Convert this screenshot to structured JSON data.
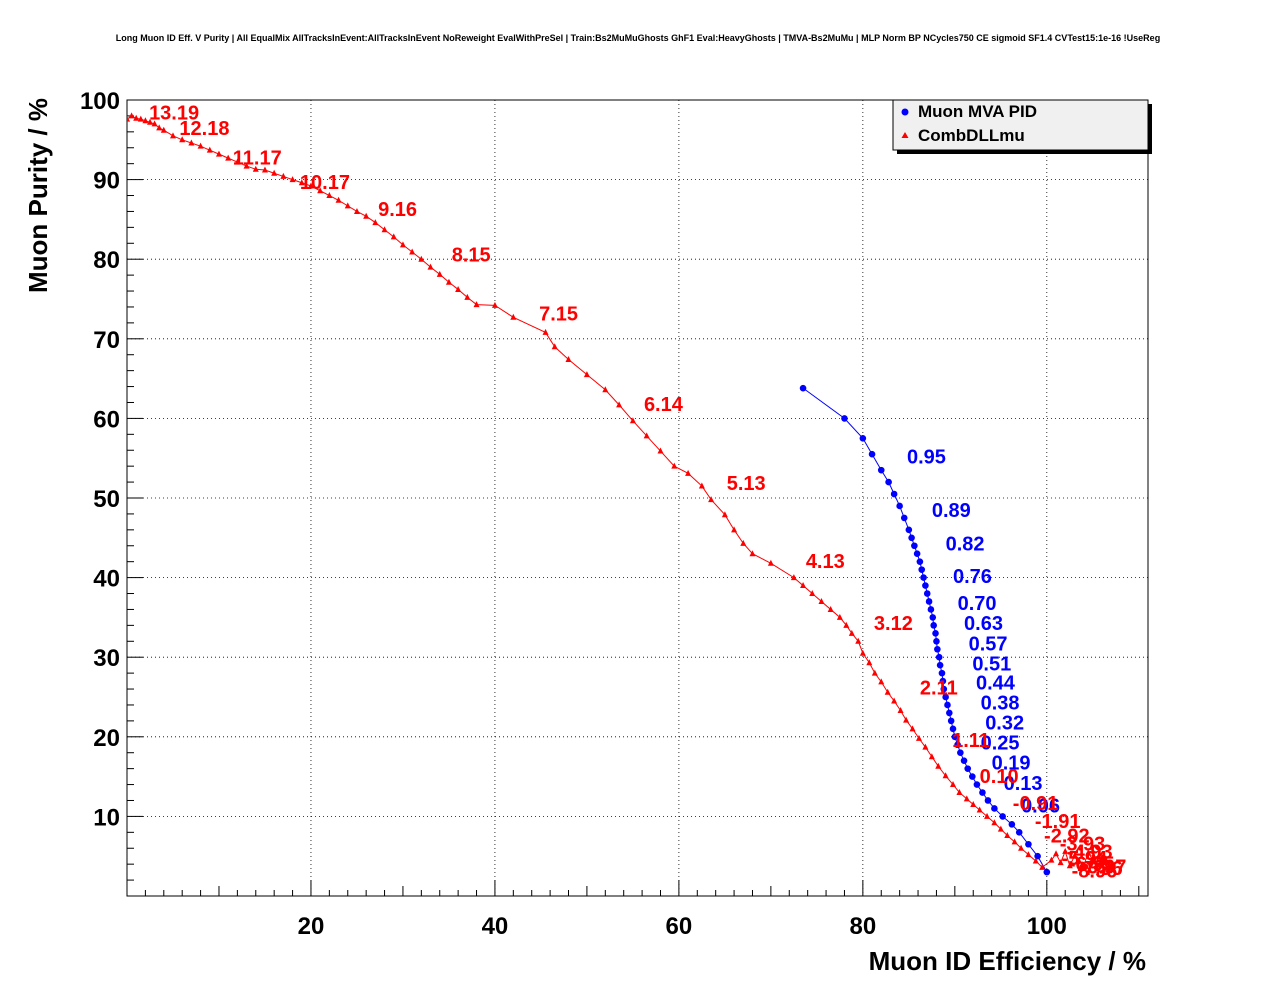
{
  "chart_data": {
    "type": "scatter",
    "title": "Long Muon ID Eff. V Purity | All EqualMix AllTracksInEvent:AllTracksInEvent NoReweight EvalWithPreSel | Train:Bs2MuMuGhosts GhF1 Eval:HeavyGhosts | TMVA-Bs2MuMu | MLP Norm BP NCycles750 CE sigmoid SF1.4 CVTest15:1e-16 !UseReg",
    "xlabel": "Muon ID Efficiency / %",
    "ylabel": "Muon Purity / %",
    "xlim": [
      0,
      111
    ],
    "ylim": [
      0,
      100
    ],
    "x_ticks": [
      20,
      40,
      60,
      80,
      100
    ],
    "y_ticks": [
      10,
      20,
      30,
      40,
      50,
      60,
      70,
      80,
      90,
      100
    ],
    "grid": true,
    "legend_position": "top-right",
    "series": [
      {
        "name": "Muon MVA PID",
        "color": "#0000ff",
        "marker": "circle",
        "points": [
          [
            73.5,
            63.8
          ],
          [
            78,
            60
          ],
          [
            80,
            57.5
          ],
          [
            81,
            55.5
          ],
          [
            82,
            53.5
          ],
          [
            82.8,
            52
          ],
          [
            83.4,
            50.5
          ],
          [
            84,
            49
          ],
          [
            84.5,
            47.5
          ],
          [
            85,
            46
          ],
          [
            85.3,
            45
          ],
          [
            85.6,
            44
          ],
          [
            85.9,
            43
          ],
          [
            86.2,
            42
          ],
          [
            86.4,
            41
          ],
          [
            86.6,
            40
          ],
          [
            86.8,
            39
          ],
          [
            87,
            38
          ],
          [
            87.2,
            37
          ],
          [
            87.4,
            36
          ],
          [
            87.6,
            35
          ],
          [
            87.7,
            34
          ],
          [
            87.9,
            33
          ],
          [
            88,
            32
          ],
          [
            88.1,
            31
          ],
          [
            88.3,
            30
          ],
          [
            88.4,
            29
          ],
          [
            88.6,
            28
          ],
          [
            88.7,
            27
          ],
          [
            88.8,
            26
          ],
          [
            89,
            25
          ],
          [
            89.2,
            24
          ],
          [
            89.4,
            23
          ],
          [
            89.6,
            22
          ],
          [
            89.8,
            21
          ],
          [
            90,
            20
          ],
          [
            90.3,
            19
          ],
          [
            90.6,
            18
          ],
          [
            91,
            17
          ],
          [
            91.4,
            16
          ],
          [
            91.9,
            15
          ],
          [
            92.4,
            14
          ],
          [
            93,
            13
          ],
          [
            93.6,
            12
          ],
          [
            94.3,
            11
          ],
          [
            95.2,
            10
          ],
          [
            96.2,
            9
          ],
          [
            97,
            8
          ],
          [
            98,
            6.5
          ],
          [
            99,
            5
          ],
          [
            100,
            3
          ]
        ],
        "labels": [
          {
            "text": "0.95",
            "x": 84.8,
            "y": 55.2
          },
          {
            "text": "0.89",
            "x": 87.5,
            "y": 48.5
          },
          {
            "text": "0.82",
            "x": 89,
            "y": 44.3
          },
          {
            "text": "0.76",
            "x": 89.8,
            "y": 40.2
          },
          {
            "text": "0.70",
            "x": 90.3,
            "y": 36.8
          },
          {
            "text": "0.63",
            "x": 91,
            "y": 34.3
          },
          {
            "text": "0.57",
            "x": 91.5,
            "y": 31.7
          },
          {
            "text": "0.51",
            "x": 91.9,
            "y": 29.2
          },
          {
            "text": "0.44",
            "x": 92.3,
            "y": 26.8
          },
          {
            "text": "0.38",
            "x": 92.8,
            "y": 24.3
          },
          {
            "text": "0.32",
            "x": 93.3,
            "y": 21.8
          },
          {
            "text": "0.25",
            "x": 92.8,
            "y": 19.3
          },
          {
            "text": "0.19",
            "x": 94,
            "y": 16.8
          },
          {
            "text": "0.13",
            "x": 95.3,
            "y": 14.2
          },
          {
            "text": "0.06",
            "x": 97.2,
            "y": 11.4
          }
        ]
      },
      {
        "name": "CombDLLmu",
        "color": "#ff0000",
        "marker": "triangle",
        "points": [
          [
            0,
            97.6
          ],
          [
            0.5,
            98
          ],
          [
            1,
            97.7
          ],
          [
            1.5,
            97.6
          ],
          [
            2,
            97.4
          ],
          [
            2.5,
            97.2
          ],
          [
            3,
            97
          ],
          [
            3.5,
            96.5
          ],
          [
            4,
            96.2
          ],
          [
            5,
            95.5
          ],
          [
            6,
            95
          ],
          [
            7,
            94.6
          ],
          [
            8,
            94.2
          ],
          [
            9,
            93.7
          ],
          [
            10,
            93.2
          ],
          [
            11,
            92.7
          ],
          [
            12,
            92.2
          ],
          [
            13,
            91.7
          ],
          [
            14,
            91.3
          ],
          [
            15,
            91.2
          ],
          [
            16,
            90.8
          ],
          [
            17,
            90.4
          ],
          [
            18,
            90
          ],
          [
            19,
            89.6
          ],
          [
            20,
            89.2
          ],
          [
            21,
            88.6
          ],
          [
            22,
            88
          ],
          [
            23,
            87.4
          ],
          [
            24,
            86.7
          ],
          [
            25,
            86
          ],
          [
            26,
            85.4
          ],
          [
            27,
            84.6
          ],
          [
            28,
            83.7
          ],
          [
            29,
            82.8
          ],
          [
            30,
            81.8
          ],
          [
            31,
            80.9
          ],
          [
            32,
            80
          ],
          [
            33,
            79
          ],
          [
            34,
            78.1
          ],
          [
            35,
            77.1
          ],
          [
            36,
            76.2
          ],
          [
            37,
            75.2
          ],
          [
            38,
            74.3
          ],
          [
            40,
            74.2
          ],
          [
            42,
            72.7
          ],
          [
            45.5,
            70.8
          ],
          [
            46.5,
            69
          ],
          [
            48,
            67.4
          ],
          [
            50,
            65.5
          ],
          [
            52,
            63.6
          ],
          [
            53.5,
            61.7
          ],
          [
            55,
            59.7
          ],
          [
            56.5,
            57.8
          ],
          [
            58,
            55.9
          ],
          [
            59.5,
            54
          ],
          [
            61,
            53.1
          ],
          [
            62.5,
            51.5
          ],
          [
            63.5,
            49.8
          ],
          [
            65,
            47.9
          ],
          [
            66,
            46
          ],
          [
            67,
            44.3
          ],
          [
            68,
            43
          ],
          [
            70,
            41.8
          ],
          [
            72.5,
            40
          ],
          [
            73.5,
            39
          ],
          [
            74.5,
            38
          ],
          [
            75.5,
            37
          ],
          [
            76.5,
            36
          ],
          [
            77.5,
            35
          ],
          [
            78.2,
            34
          ],
          [
            78.8,
            33
          ],
          [
            79.5,
            32
          ],
          [
            80,
            30.5
          ],
          [
            80.7,
            29.3
          ],
          [
            81.3,
            28
          ],
          [
            82,
            26.9
          ],
          [
            82.7,
            25.6
          ],
          [
            83.4,
            24.5
          ],
          [
            84.1,
            23.3
          ],
          [
            84.7,
            22.1
          ],
          [
            85.4,
            21
          ],
          [
            86.1,
            19.8
          ],
          [
            86.8,
            18.7
          ],
          [
            87.5,
            17.5
          ],
          [
            88.2,
            16.3
          ],
          [
            89,
            15.1
          ],
          [
            89.8,
            14
          ],
          [
            90.5,
            13
          ],
          [
            91.3,
            12.2
          ],
          [
            92,
            11.5
          ],
          [
            92.7,
            10.8
          ],
          [
            93.5,
            10
          ],
          [
            94.3,
            9.2
          ],
          [
            95,
            8.4
          ],
          [
            95.7,
            7.6
          ],
          [
            96.5,
            6.8
          ],
          [
            97.2,
            6
          ],
          [
            98,
            5.2
          ],
          [
            98.8,
            4.4
          ],
          [
            99.5,
            3.6
          ],
          [
            100.5,
            4.5
          ],
          [
            101,
            5.3
          ],
          [
            101.5,
            4.2
          ],
          [
            102,
            5.6
          ],
          [
            102.5,
            3.8
          ],
          [
            103,
            5
          ],
          [
            103.5,
            4.4
          ],
          [
            104,
            3.8
          ],
          [
            104.5,
            5.4
          ],
          [
            105,
            4.6
          ],
          [
            105.5,
            3.9
          ],
          [
            106,
            4.8
          ],
          [
            106.5,
            4.2
          ],
          [
            107,
            3.6
          ]
        ],
        "labels": [
          {
            "text": "13.19",
            "x": 2.4,
            "y": 98.4
          },
          {
            "text": "12.18",
            "x": 5.7,
            "y": 96.5
          },
          {
            "text": "11.17",
            "x": 11.5,
            "y": 92.8
          },
          {
            "text": "10.17",
            "x": 18.8,
            "y": 89.7
          },
          {
            "text": "9.16",
            "x": 27.3,
            "y": 86.3
          },
          {
            "text": "8.15",
            "x": 35.3,
            "y": 80.6
          },
          {
            "text": "7.15",
            "x": 44.8,
            "y": 73.2
          },
          {
            "text": "6.14",
            "x": 56.2,
            "y": 61.8
          },
          {
            "text": "5.13",
            "x": 65.2,
            "y": 51.9
          },
          {
            "text": "4.13",
            "x": 73.8,
            "y": 42.1
          },
          {
            "text": "3.12",
            "x": 81.2,
            "y": 34.3
          },
          {
            "text": "2.11",
            "x": 86.2,
            "y": 26.2
          },
          {
            "text": "1.11",
            "x": 89.7,
            "y": 19.6
          },
          {
            "text": "0.10",
            "x": 92.7,
            "y": 15.1
          },
          {
            "text": "-0.91",
            "x": 96.3,
            "y": 11.7
          },
          {
            "text": "-1.91",
            "x": 98.7,
            "y": 9.4
          },
          {
            "text": "-2.92",
            "x": 99.7,
            "y": 7.6
          },
          {
            "text": "-3.93",
            "x": 101.4,
            "y": 6.6
          },
          {
            "text": "-4.93",
            "x": 102.2,
            "y": 5.6
          },
          {
            "text": "-5.94",
            "x": 101.6,
            "y": 4.8
          },
          {
            "text": "-6.95",
            "x": 102.4,
            "y": 4.1
          },
          {
            "text": "-7.96",
            "x": 103.3,
            "y": 3.5
          },
          {
            "text": "-8.96",
            "x": 102.7,
            "y": 3.2
          },
          {
            "text": "-9.97",
            "x": 103.7,
            "y": 3.7
          }
        ]
      }
    ]
  }
}
